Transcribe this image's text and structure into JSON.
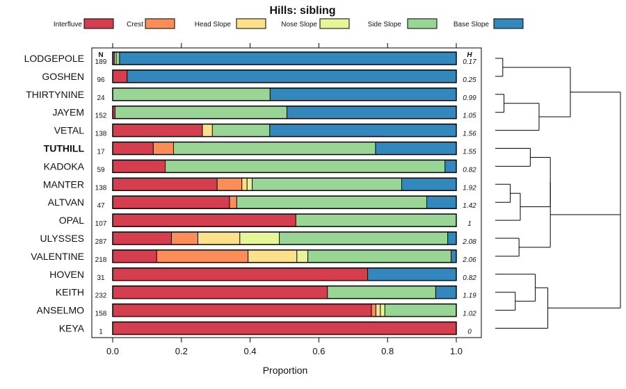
{
  "chart_data": {
    "type": "bar",
    "stacked": true,
    "orientation": "horizontal",
    "title": "Hills: sibling",
    "xlabel": "Proportion",
    "xlim": [
      0,
      1
    ],
    "xticks": [
      "0.0",
      "0.2",
      "0.4",
      "0.6",
      "0.8",
      "1.0"
    ],
    "n_header": "N",
    "h_header": "H",
    "highlight": "TUTHILL",
    "legend": [
      {
        "name": "Interfluve",
        "color": "#D53E4F"
      },
      {
        "name": "Crest",
        "color": "#FC8D59"
      },
      {
        "name": "Head Slope",
        "color": "#FEE08B"
      },
      {
        "name": "Nose Slope",
        "color": "#E6F598"
      },
      {
        "name": "Side Slope",
        "color": "#99D594"
      },
      {
        "name": "Base Slope",
        "color": "#3288BD"
      }
    ],
    "rows": [
      {
        "label": "LODGEPOLE",
        "n": "189",
        "h": "0.17",
        "values": [
          0.005,
          0.0,
          0.0,
          0.005,
          0.01,
          0.98
        ]
      },
      {
        "label": "GOSHEN",
        "n": "96",
        "h": "0.25",
        "values": [
          0.042,
          0.0,
          0.0,
          0.0,
          0.0,
          0.958
        ]
      },
      {
        "label": "THIRTYNINE",
        "n": "24",
        "h": "0.99",
        "values": [
          0.0,
          0.0,
          0.0,
          0.0,
          0.458,
          0.542
        ]
      },
      {
        "label": "JAYEM",
        "n": "152",
        "h": "1.05",
        "values": [
          0.007,
          0.0,
          0.0,
          0.0,
          0.5,
          0.493
        ]
      },
      {
        "label": "VETAL",
        "n": "138",
        "h": "1.56",
        "values": [
          0.261,
          0.0,
          0.029,
          0.0,
          0.167,
          0.543
        ]
      },
      {
        "label": "TUTHILL",
        "n": "17",
        "h": "1.55",
        "values": [
          0.118,
          0.059,
          0.0,
          0.0,
          0.588,
          0.235
        ]
      },
      {
        "label": "KADOKA",
        "n": "59",
        "h": "0.82",
        "values": [
          0.153,
          0.0,
          0.0,
          0.0,
          0.814,
          0.033
        ]
      },
      {
        "label": "MANTER",
        "n": "138",
        "h": "1.92",
        "values": [
          0.304,
          0.072,
          0.015,
          0.015,
          0.435,
          0.159
        ]
      },
      {
        "label": "ALTVAN",
        "n": "47",
        "h": "1.42",
        "values": [
          0.34,
          0.021,
          0.0,
          0.0,
          0.553,
          0.086
        ]
      },
      {
        "label": "OPAL",
        "n": "107",
        "h": "1",
        "values": [
          0.533,
          0.0,
          0.0,
          0.0,
          0.467,
          0.0
        ]
      },
      {
        "label": "ULYSSES",
        "n": "287",
        "h": "2.08",
        "values": [
          0.171,
          0.077,
          0.122,
          0.115,
          0.49,
          0.025
        ]
      },
      {
        "label": "VALENTINE",
        "n": "218",
        "h": "2.06",
        "values": [
          0.128,
          0.266,
          0.142,
          0.032,
          0.417,
          0.015
        ]
      },
      {
        "label": "HOVEN",
        "n": "31",
        "h": "0.82",
        "values": [
          0.742,
          0.0,
          0.0,
          0.0,
          0.0,
          0.258
        ]
      },
      {
        "label": "KEITH",
        "n": "232",
        "h": "1.19",
        "values": [
          0.625,
          0.0,
          0.0,
          0.0,
          0.315,
          0.06
        ]
      },
      {
        "label": "ANSELMO",
        "n": "158",
        "h": "1.02",
        "values": [
          0.753,
          0.013,
          0.013,
          0.013,
          0.208,
          0.0
        ]
      },
      {
        "label": "KEYA",
        "n": "1",
        "h": "0",
        "values": [
          1.0,
          0.0,
          0.0,
          0.0,
          0.0,
          0.0
        ]
      }
    ],
    "dendrogram": [
      {
        "a": 0,
        "b": 1,
        "height": 0.06
      },
      {
        "a": 2,
        "b": 3,
        "height": 0.07
      },
      {
        "a": "m1",
        "b": 4,
        "height": 0.35
      },
      {
        "a": "m0",
        "b": "m2",
        "height": 0.6
      },
      {
        "a": 5,
        "b": 6,
        "height": 0.28
      },
      {
        "a": 7,
        "b": 8,
        "height": 0.12
      },
      {
        "a": "m5",
        "b": 9,
        "height": 0.2
      },
      {
        "a": "m4",
        "b": "m6",
        "height": 0.44
      },
      {
        "a": 10,
        "b": 11,
        "height": 0.19
      },
      {
        "a": "m7",
        "b": "m8",
        "height": 0.44
      },
      {
        "a": 13,
        "b": 14,
        "height": 0.16
      },
      {
        "a": 12,
        "b": "m10",
        "height": 0.32
      },
      {
        "a": "m11",
        "b": 15,
        "height": 0.42
      },
      {
        "a": "m9",
        "b": "m12",
        "height": 1.0
      },
      {
        "a": "m3",
        "b": "m13",
        "height": 1.0
      }
    ]
  }
}
